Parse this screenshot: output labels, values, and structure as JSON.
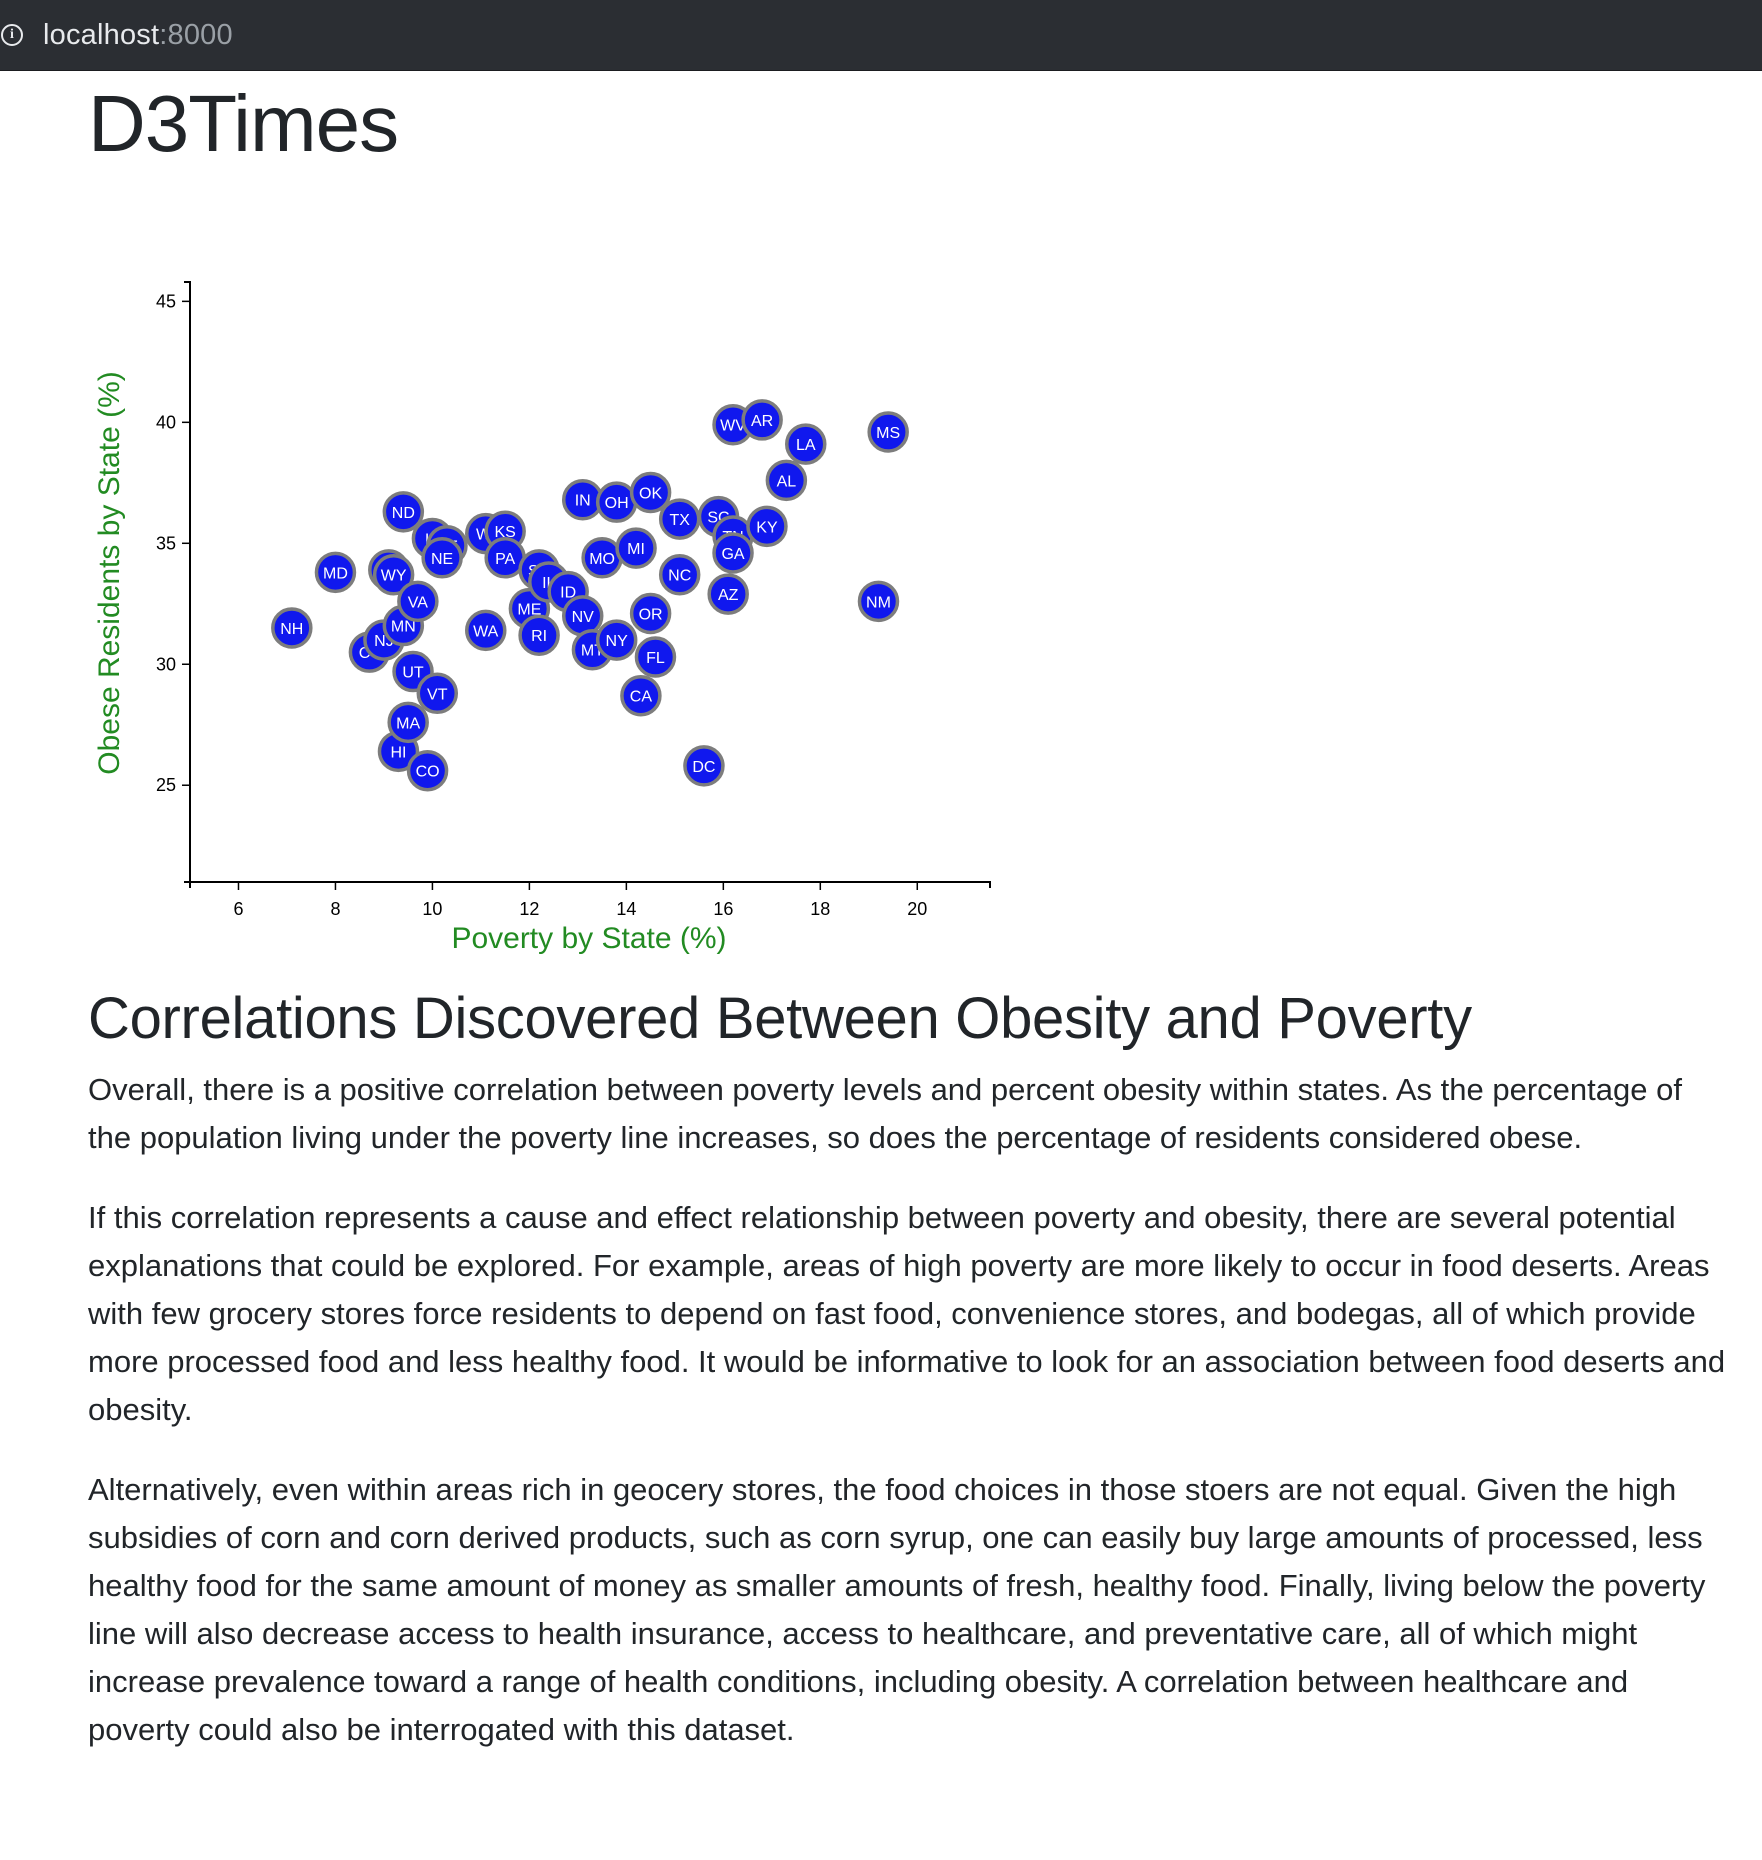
{
  "browser": {
    "host": "localhost",
    "port": ":8000"
  },
  "page": {
    "title": "D3Times",
    "heading": "Correlations Discovered Between Obesity and Poverty",
    "paragraphs": [
      "Overall, there is a positive correlation between poverty levels and percent obesity within states. As the percentage of the population living under the poverty line increases, so does the percentage of residents considered obese.",
      "If this correlation represents a cause and effect relationship between poverty and obesity, there are several potential explanations that could be explored. For example, areas of high poverty are more likely to occur in food deserts. Areas with few grocery stores force residents to depend on fast food, convenience stores, and bodegas, all of which provide more processed food and less healthy food. It would be informative to look for an association between food deserts and obesity.",
      "Alternatively, even within areas rich in geocery stores, the food choices in those stoers are not equal. Given the high subsidies of corn and corn derived products, such as corn syrup, one can easily buy large amounts of processed, less healthy food for the same amount of money as smaller amounts of fresh, healthy food. Finally, living below the poverty line will also decrease access to health insurance, access to healthcare, and preventative care, all of which might increase prevalence toward a range of health conditions, including obesity. A correlation between healthcare and poverty could also be interrogated with this dataset."
    ]
  },
  "chart_data": {
    "type": "scatter",
    "xlabel": "Poverty by State (%)",
    "ylabel": "Obese Residents by State (%)",
    "xlim": [
      5,
      21.5
    ],
    "ylim": [
      21,
      45.8
    ],
    "xticks": [
      6,
      8,
      10,
      12,
      14,
      16,
      18,
      20
    ],
    "yticks": [
      25,
      30,
      35,
      40,
      45
    ],
    "grid": false,
    "marker_color": "#1018ee",
    "marker_stroke": "#7d7d7d",
    "label_color": "#ffffff",
    "axis_label_color": "#228b22",
    "points": [
      {
        "abbr": "NH",
        "x": 7.1,
        "y": 31.5
      },
      {
        "abbr": "MD",
        "x": 8.0,
        "y": 33.8
      },
      {
        "abbr": "CT",
        "x": 8.7,
        "y": 30.5
      },
      {
        "abbr": "AK",
        "x": 9.1,
        "y": 33.9
      },
      {
        "abbr": "WY",
        "x": 9.2,
        "y": 33.7
      },
      {
        "abbr": "NJ",
        "x": 9.0,
        "y": 31.0
      },
      {
        "abbr": "MN",
        "x": 9.4,
        "y": 31.6
      },
      {
        "abbr": "HI",
        "x": 9.3,
        "y": 26.4
      },
      {
        "abbr": "ND",
        "x": 9.4,
        "y": 36.3
      },
      {
        "abbr": "MA",
        "x": 9.5,
        "y": 27.6
      },
      {
        "abbr": "VA",
        "x": 9.7,
        "y": 32.6
      },
      {
        "abbr": "UT",
        "x": 9.6,
        "y": 29.7
      },
      {
        "abbr": "CO",
        "x": 9.9,
        "y": 25.6
      },
      {
        "abbr": "IA",
        "x": 10.0,
        "y": 35.2
      },
      {
        "abbr": "DE",
        "x": 10.3,
        "y": 34.9
      },
      {
        "abbr": "NE",
        "x": 10.2,
        "y": 34.4
      },
      {
        "abbr": "VT",
        "x": 10.1,
        "y": 28.8
      },
      {
        "abbr": "WI",
        "x": 11.1,
        "y": 35.4
      },
      {
        "abbr": "KS",
        "x": 11.5,
        "y": 35.5
      },
      {
        "abbr": "WA",
        "x": 11.1,
        "y": 31.4
      },
      {
        "abbr": "PA",
        "x": 11.5,
        "y": 34.4
      },
      {
        "abbr": "SD",
        "x": 12.2,
        "y": 33.9
      },
      {
        "abbr": "ME",
        "x": 12.0,
        "y": 32.3
      },
      {
        "abbr": "IL",
        "x": 12.4,
        "y": 33.4
      },
      {
        "abbr": "RI",
        "x": 12.2,
        "y": 31.2
      },
      {
        "abbr": "ID",
        "x": 12.8,
        "y": 33.0
      },
      {
        "abbr": "IN",
        "x": 13.1,
        "y": 36.8
      },
      {
        "abbr": "NV",
        "x": 13.1,
        "y": 32.0
      },
      {
        "abbr": "MT",
        "x": 13.3,
        "y": 30.6
      },
      {
        "abbr": "MO",
        "x": 13.5,
        "y": 34.4
      },
      {
        "abbr": "OH",
        "x": 13.8,
        "y": 36.7
      },
      {
        "abbr": "NY",
        "x": 13.8,
        "y": 31.0
      },
      {
        "abbr": "MI",
        "x": 14.2,
        "y": 34.8
      },
      {
        "abbr": "FL",
        "x": 14.6,
        "y": 30.3
      },
      {
        "abbr": "CA",
        "x": 14.3,
        "y": 28.7
      },
      {
        "abbr": "OK",
        "x": 14.5,
        "y": 37.1
      },
      {
        "abbr": "OR",
        "x": 14.5,
        "y": 32.1
      },
      {
        "abbr": "TX",
        "x": 15.1,
        "y": 36.0
      },
      {
        "abbr": "NC",
        "x": 15.1,
        "y": 33.7
      },
      {
        "abbr": "DC",
        "x": 15.6,
        "y": 25.8
      },
      {
        "abbr": "SC",
        "x": 15.9,
        "y": 36.1
      },
      {
        "abbr": "TN",
        "x": 16.2,
        "y": 35.3
      },
      {
        "abbr": "GA",
        "x": 16.2,
        "y": 34.6
      },
      {
        "abbr": "AZ",
        "x": 16.1,
        "y": 32.9
      },
      {
        "abbr": "WV",
        "x": 16.2,
        "y": 39.9
      },
      {
        "abbr": "AR",
        "x": 16.8,
        "y": 40.1
      },
      {
        "abbr": "KY",
        "x": 16.9,
        "y": 35.7
      },
      {
        "abbr": "AL",
        "x": 17.3,
        "y": 37.6
      },
      {
        "abbr": "LA",
        "x": 17.7,
        "y": 39.1
      },
      {
        "abbr": "NM",
        "x": 19.2,
        "y": 32.6
      },
      {
        "abbr": "MS",
        "x": 19.4,
        "y": 39.6
      }
    ]
  }
}
